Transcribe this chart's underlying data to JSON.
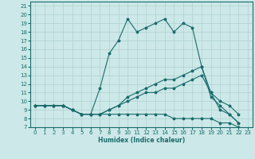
{
  "xlabel": "Humidex (Indice chaleur)",
  "bg_color": "#cce8e8",
  "grid_color": "#b0d0d0",
  "line_color": "#1a6b6b",
  "xlim": [
    -0.5,
    23.5
  ],
  "ylim": [
    7,
    21.5
  ],
  "xticks": [
    0,
    1,
    2,
    3,
    4,
    5,
    6,
    7,
    8,
    9,
    10,
    11,
    12,
    13,
    14,
    15,
    16,
    17,
    18,
    19,
    20,
    21,
    22,
    23
  ],
  "yticks": [
    7,
    8,
    9,
    10,
    11,
    12,
    13,
    14,
    15,
    16,
    17,
    18,
    19,
    20,
    21
  ],
  "series": [
    {
      "x": [
        0,
        1,
        2,
        3,
        4,
        5,
        6,
        7,
        8,
        9,
        10,
        11,
        12,
        13,
        14,
        15,
        16,
        17,
        18,
        19,
        20,
        21,
        22
      ],
      "y": [
        9.5,
        9.5,
        9.5,
        9.5,
        9.0,
        8.5,
        8.5,
        11.5,
        15.5,
        17.0,
        19.5,
        18.0,
        18.5,
        19.0,
        19.5,
        18.0,
        19.0,
        18.5,
        14.0,
        11.0,
        9.0,
        8.5,
        7.5
      ]
    },
    {
      "x": [
        0,
        1,
        2,
        3,
        4,
        5,
        6,
        7,
        8,
        9,
        10,
        11,
        12,
        13,
        14,
        15,
        16,
        17,
        18,
        19,
        20,
        21,
        22
      ],
      "y": [
        9.5,
        9.5,
        9.5,
        9.5,
        9.0,
        8.5,
        8.5,
        8.5,
        9.0,
        9.5,
        10.5,
        11.0,
        11.5,
        12.0,
        12.5,
        12.5,
        13.0,
        13.5,
        14.0,
        10.5,
        9.5,
        8.5,
        7.5
      ]
    },
    {
      "x": [
        0,
        1,
        2,
        3,
        4,
        5,
        6,
        7,
        8,
        9,
        10,
        11,
        12,
        13,
        14,
        15,
        16,
        17,
        18,
        19,
        20,
        21,
        22
      ],
      "y": [
        9.5,
        9.5,
        9.5,
        9.5,
        9.0,
        8.5,
        8.5,
        8.5,
        8.5,
        8.5,
        8.5,
        8.5,
        8.5,
        8.5,
        8.5,
        8.0,
        8.0,
        8.0,
        8.0,
        8.0,
        7.5,
        7.5,
        7.0
      ]
    },
    {
      "x": [
        0,
        1,
        2,
        3,
        4,
        5,
        6,
        7,
        8,
        9,
        10,
        11,
        12,
        13,
        14,
        15,
        16,
        17,
        18,
        19,
        20,
        21,
        22
      ],
      "y": [
        9.5,
        9.5,
        9.5,
        9.5,
        9.0,
        8.5,
        8.5,
        8.5,
        9.0,
        9.5,
        10.0,
        10.5,
        11.0,
        11.0,
        11.5,
        11.5,
        12.0,
        12.5,
        13.0,
        11.0,
        10.0,
        9.5,
        8.5
      ]
    }
  ]
}
